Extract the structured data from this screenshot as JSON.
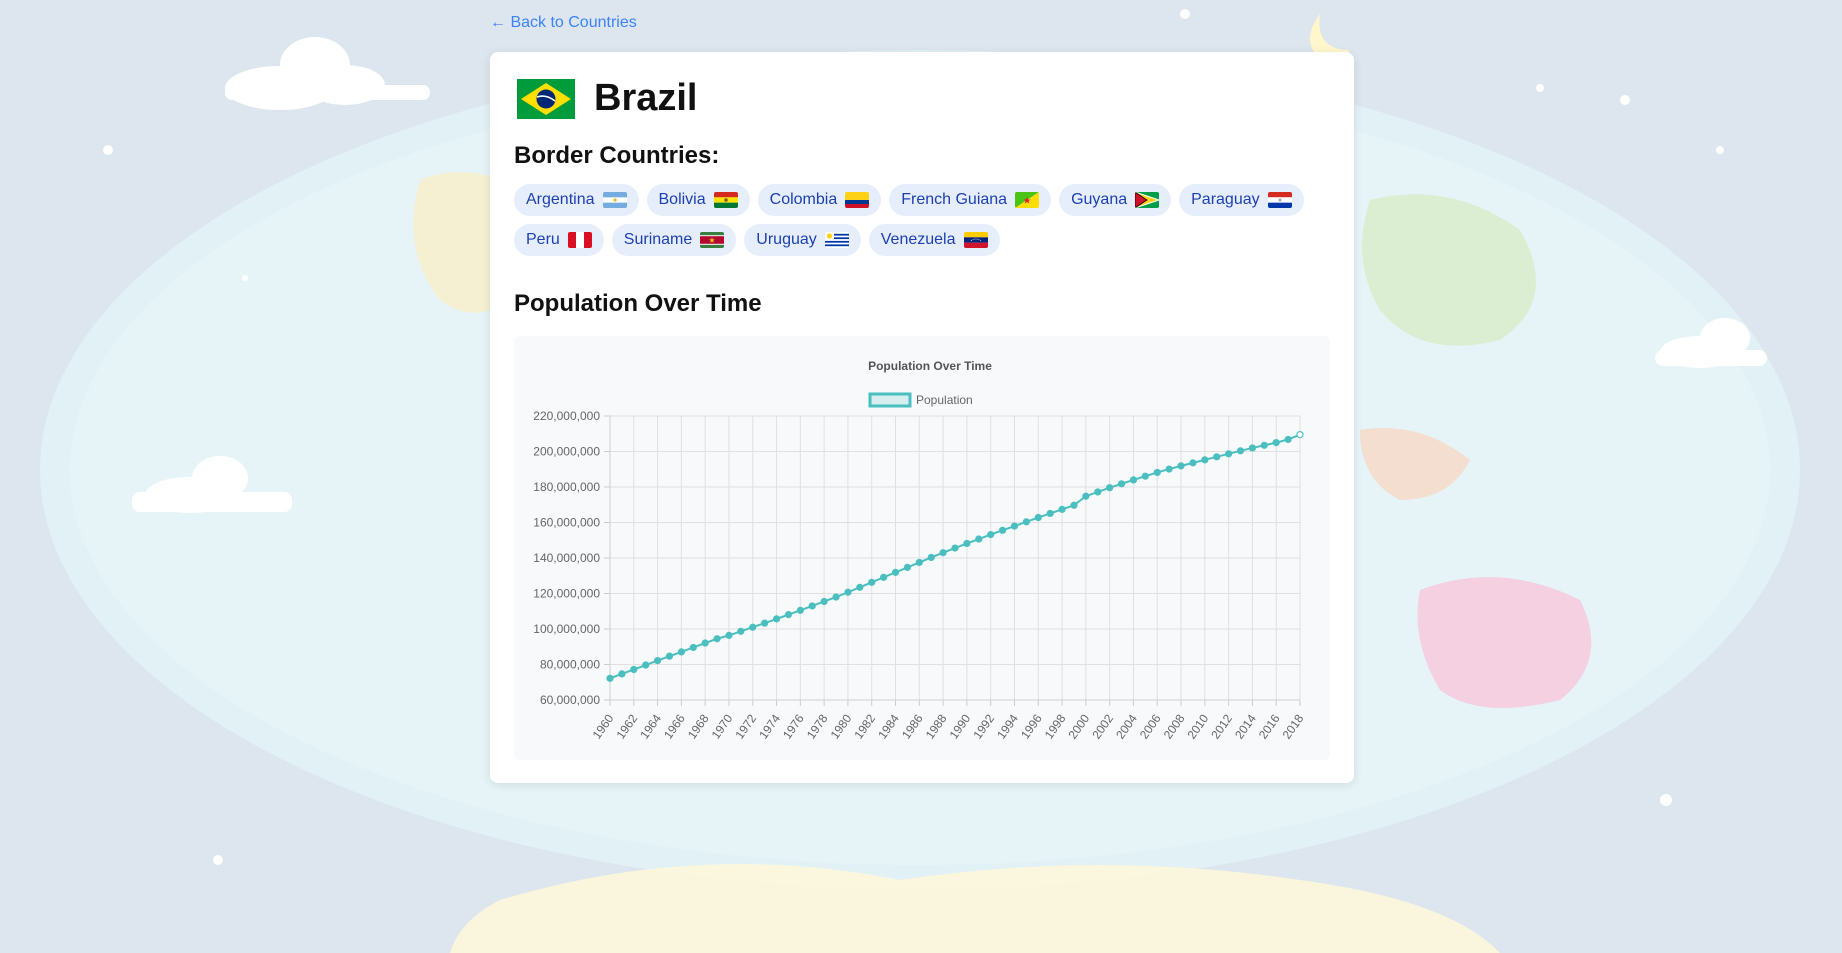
{
  "nav": {
    "back_label": "← Back to Countries"
  },
  "country": {
    "name": "Brazil",
    "flag_icon": "brazil-flag-icon"
  },
  "borders": {
    "title": "Border Countries:",
    "items": [
      {
        "label": "Argentina",
        "flag": "argentina-flag-icon"
      },
      {
        "label": "Bolivia",
        "flag": "bolivia-flag-icon"
      },
      {
        "label": "Colombia",
        "flag": "colombia-flag-icon"
      },
      {
        "label": "French Guiana",
        "flag": "french-guiana-flag-icon"
      },
      {
        "label": "Guyana",
        "flag": "guyana-flag-icon"
      },
      {
        "label": "Paraguay",
        "flag": "paraguay-flag-icon"
      },
      {
        "label": "Peru",
        "flag": "peru-flag-icon"
      },
      {
        "label": "Suriname",
        "flag": "suriname-flag-icon"
      },
      {
        "label": "Uruguay",
        "flag": "uruguay-flag-icon"
      },
      {
        "label": "Venezuela",
        "flag": "venezuela-flag-icon"
      }
    ]
  },
  "population_section": {
    "title": "Population Over Time"
  },
  "colors": {
    "accent": "#4bbfbf",
    "link": "#3b82f6",
    "chip_bg": "#e6eefb",
    "chip_text": "#1e40af"
  },
  "chart_data": {
    "type": "line",
    "title": "Population Over Time",
    "legend": {
      "position": "top",
      "label": "Population"
    },
    "grid": true,
    "x": [
      1960,
      1961,
      1962,
      1963,
      1964,
      1965,
      1966,
      1967,
      1968,
      1969,
      1970,
      1971,
      1972,
      1973,
      1974,
      1975,
      1976,
      1977,
      1978,
      1979,
      1980,
      1981,
      1982,
      1983,
      1984,
      1985,
      1986,
      1987,
      1988,
      1989,
      1990,
      1991,
      1992,
      1993,
      1994,
      1995,
      1996,
      1997,
      1998,
      1999,
      2000,
      2001,
      2002,
      2003,
      2004,
      2005,
      2006,
      2007,
      2008,
      2009,
      2010,
      2011,
      2012,
      2013,
      2014,
      2015,
      2016,
      2017,
      2018
    ],
    "x_tick_labels": [
      "1960",
      "1962",
      "1964",
      "1966",
      "1968",
      "1970",
      "1972",
      "1974",
      "1976",
      "1978",
      "1980",
      "1982",
      "1984",
      "1986",
      "1988",
      "1990",
      "1992",
      "1994",
      "1996",
      "1998",
      "2000",
      "2002",
      "2004",
      "2006",
      "2008",
      "2010",
      "2012",
      "2014",
      "2016",
      "2018"
    ],
    "ylim": [
      60000000,
      220000000
    ],
    "y_tick_labels": [
      "60,000,000",
      "80,000,000",
      "100,000,000",
      "120,000,000",
      "140,000,000",
      "160,000,000",
      "180,000,000",
      "200,000,000",
      "220,000,000"
    ],
    "series": [
      {
        "name": "Population",
        "values": [
          72200000,
          74700000,
          77200000,
          79700000,
          82200000,
          84700000,
          87100000,
          89600000,
          92100000,
          94500000,
          96400000,
          98700000,
          101000000,
          103300000,
          105700000,
          108100000,
          110500000,
          113000000,
          115500000,
          118000000,
          120700000,
          123500000,
          126300000,
          129100000,
          131900000,
          134700000,
          137500000,
          140300000,
          143000000,
          145600000,
          148200000,
          150700000,
          153200000,
          155600000,
          158000000,
          160400000,
          162800000,
          165100000,
          167400000,
          169700000,
          174800000,
          177200000,
          179600000,
          181800000,
          184000000,
          186100000,
          188200000,
          190100000,
          191900000,
          193600000,
          195300000,
          197000000,
          198700000,
          200400000,
          202000000,
          203500000,
          205000000,
          206800000,
          209500000
        ]
      }
    ]
  }
}
